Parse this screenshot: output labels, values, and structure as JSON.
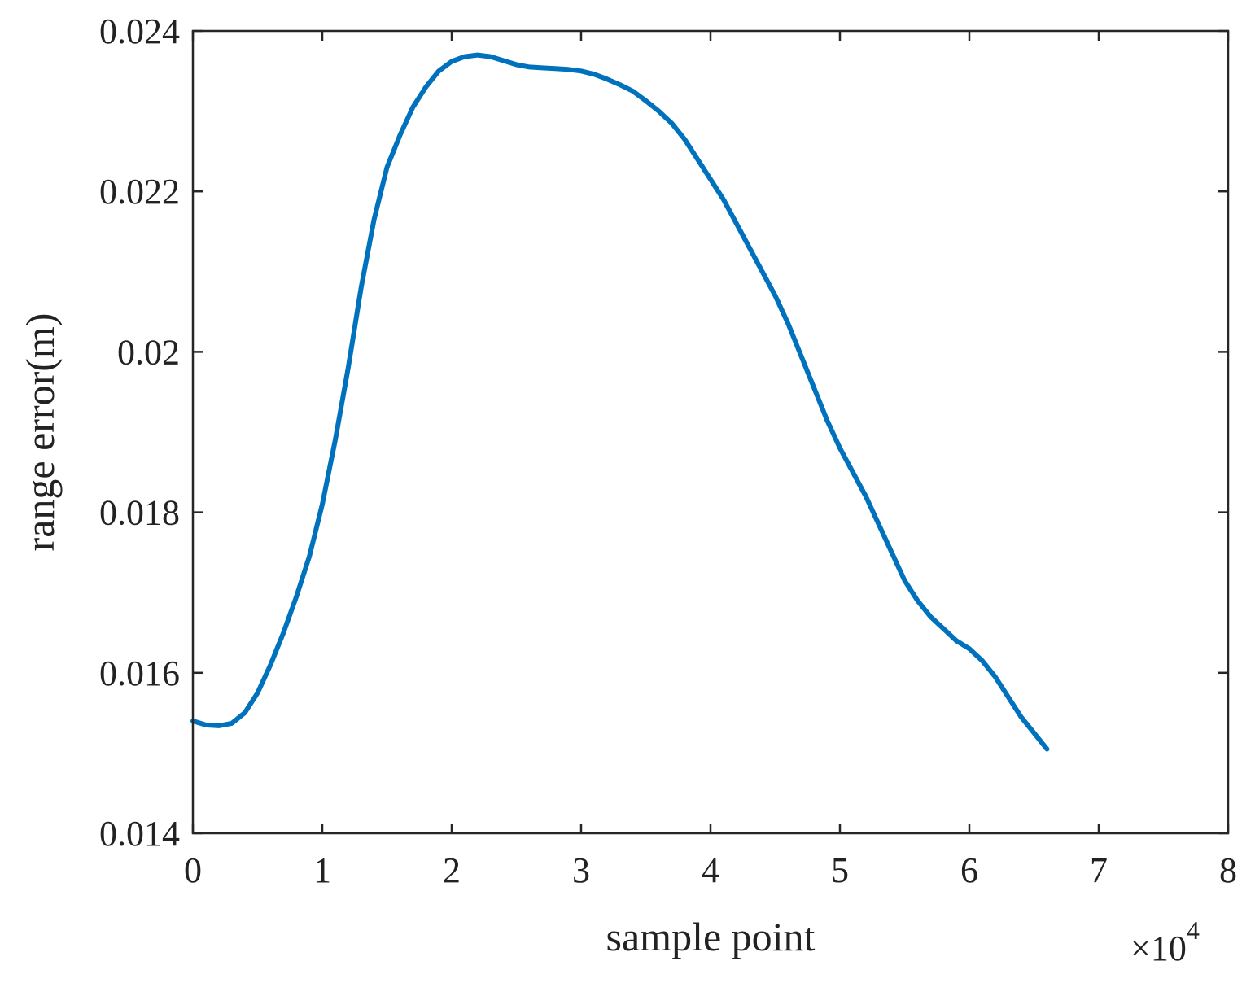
{
  "chart_data": {
    "type": "line",
    "title": "",
    "xlabel": "sample point",
    "ylabel": "range error(m)",
    "xlim": [
      0,
      8
    ],
    "ylim": [
      0.014,
      0.024
    ],
    "x_multiplier": "×10",
    "x_multiplier_exponent": "4",
    "x_ticks": [
      "0",
      "1",
      "2",
      "3",
      "4",
      "5",
      "6",
      "7",
      "8"
    ],
    "y_ticks": [
      "0.014",
      "0.016",
      "0.018",
      "0.02",
      "0.022",
      "0.024"
    ],
    "grid": false,
    "line_color": "#0072bd",
    "series": [
      {
        "x": [
          0,
          0.1,
          0.2,
          0.3,
          0.4,
          0.5,
          0.6,
          0.7,
          0.8,
          0.9,
          1.0,
          1.1,
          1.2,
          1.3,
          1.4,
          1.5,
          1.6,
          1.7,
          1.8,
          1.9,
          2.0,
          2.1,
          2.2,
          2.3,
          2.4,
          2.5,
          2.6,
          2.7,
          2.8,
          2.9,
          3.0,
          3.1,
          3.2,
          3.3,
          3.4,
          3.5,
          3.6,
          3.7,
          3.8,
          3.9,
          4.0,
          4.1,
          4.2,
          4.3,
          4.4,
          4.5,
          4.6,
          4.7,
          4.8,
          4.9,
          5.0,
          5.1,
          5.2,
          5.3,
          5.4,
          5.5,
          5.6,
          5.7,
          5.8,
          5.9,
          6.0,
          6.1,
          6.2,
          6.3,
          6.4,
          6.5,
          6.6
        ],
        "y": [
          0.0154,
          0.01535,
          0.01534,
          0.01537,
          0.0155,
          0.01575,
          0.0161,
          0.0165,
          0.01695,
          0.01745,
          0.0181,
          0.0189,
          0.0198,
          0.0208,
          0.02165,
          0.0223,
          0.0227,
          0.02305,
          0.0233,
          0.0235,
          0.02362,
          0.02368,
          0.0237,
          0.02368,
          0.02363,
          0.02358,
          0.02355,
          0.02354,
          0.02353,
          0.02352,
          0.0235,
          0.02346,
          0.0234,
          0.02333,
          0.02325,
          0.02313,
          0.023,
          0.02285,
          0.02265,
          0.0224,
          0.02215,
          0.0219,
          0.0216,
          0.0213,
          0.021,
          0.0207,
          0.02035,
          0.01995,
          0.01955,
          0.01915,
          0.0188,
          0.0185,
          0.0182,
          0.01785,
          0.0175,
          0.01715,
          0.0169,
          0.0167,
          0.01655,
          0.0164,
          0.0163,
          0.01615,
          0.01595,
          0.0157,
          0.01545,
          0.01525,
          0.01505
        ]
      }
    ]
  }
}
